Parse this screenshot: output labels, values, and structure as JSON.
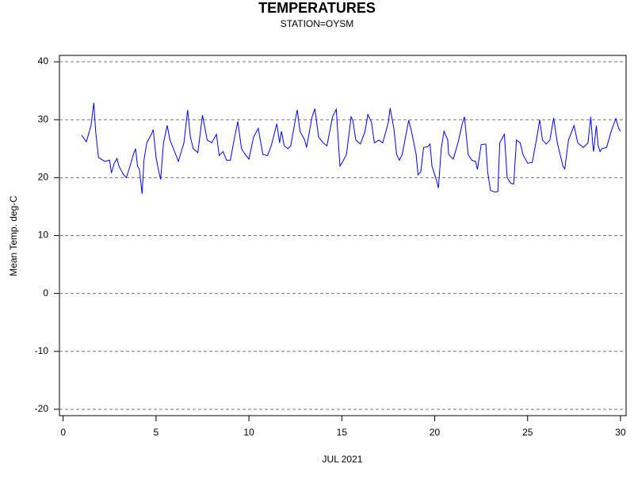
{
  "chart_data": {
    "type": "line",
    "title": "TEMPERATURES",
    "subtitle": "STATION=OYSM",
    "x_label": "JUL 2021",
    "y_label": "Mean Temp. deg-C",
    "xlim": [
      -0.2,
      30.3
    ],
    "xticks": [
      0,
      5,
      10,
      15,
      20,
      25,
      30
    ],
    "ylim": [
      -21.1,
      41.1
    ],
    "yticks": [
      -20,
      -10,
      0,
      10,
      20,
      30,
      40
    ],
    "grid": true,
    "series": [
      {
        "color": "#0000ff",
        "x": [
          1.0,
          1.25,
          1.5,
          1.65,
          1.75,
          1.9,
          2.0,
          2.25,
          2.5,
          2.6,
          2.75,
          2.9,
          3.0,
          3.25,
          3.4,
          3.6,
          3.8,
          3.9,
          4.0,
          4.1,
          4.25,
          4.35,
          4.5,
          4.75,
          4.85,
          5.0,
          5.15,
          5.25,
          5.4,
          5.6,
          5.75,
          6.0,
          6.2,
          6.5,
          6.7,
          6.85,
          7.0,
          7.25,
          7.5,
          7.75,
          8.0,
          8.25,
          8.4,
          8.6,
          8.8,
          9.0,
          9.2,
          9.4,
          9.6,
          9.8,
          10.0,
          10.25,
          10.5,
          10.75,
          11.0,
          11.2,
          11.5,
          11.65,
          11.75,
          11.9,
          12.1,
          12.25,
          12.5,
          12.6,
          12.75,
          13.0,
          13.1,
          13.4,
          13.55,
          13.75,
          14.0,
          14.2,
          14.5,
          14.7,
          14.9,
          15.0,
          15.25,
          15.5,
          15.6,
          15.75,
          16.0,
          16.25,
          16.4,
          16.6,
          16.75,
          17.0,
          17.2,
          17.5,
          17.6,
          17.8,
          17.95,
          18.1,
          18.25,
          18.6,
          18.75,
          19.0,
          19.1,
          19.25,
          19.4,
          19.6,
          19.75,
          19.85,
          20.0,
          20.1,
          20.2,
          20.35,
          20.5,
          20.7,
          20.75,
          21.0,
          21.25,
          21.5,
          21.6,
          21.8,
          22.0,
          22.2,
          22.3,
          22.5,
          22.75,
          22.85,
          23.0,
          23.25,
          23.4,
          23.5,
          23.75,
          23.9,
          24.1,
          24.25,
          24.4,
          24.6,
          24.75,
          25.0,
          25.25,
          25.5,
          25.65,
          25.8,
          26.0,
          26.2,
          26.4,
          26.6,
          26.75,
          26.9,
          27.0,
          27.2,
          27.5,
          27.7,
          28.0,
          28.25,
          28.4,
          28.5,
          28.55,
          28.7,
          28.8,
          28.9,
          29.0,
          29.25,
          29.5,
          29.75,
          29.9,
          30.0
        ],
        "values": [
          27.3,
          26.2,
          29,
          32.9,
          28,
          23.5,
          23.3,
          22.8,
          23,
          20.8,
          22.5,
          23.3,
          22,
          20.5,
          20,
          22,
          24.2,
          25,
          22,
          21.5,
          17.2,
          23,
          26,
          27.5,
          28.3,
          23.5,
          21,
          19.7,
          26,
          29,
          26.5,
          24.5,
          22.8,
          26,
          31.7,
          27,
          25,
          24.3,
          30.8,
          26.5,
          26,
          27.5,
          23.8,
          24.5,
          23,
          23,
          26.5,
          29.7,
          25,
          24,
          23.2,
          27,
          28.5,
          24,
          23.8,
          25.5,
          29.3,
          26,
          28,
          25.5,
          25,
          25.5,
          30,
          31.7,
          28,
          26.5,
          25.2,
          30.5,
          31.9,
          27,
          26,
          25.5,
          30.5,
          31.8,
          22,
          22.5,
          24,
          30.5,
          29.8,
          26.5,
          25.8,
          28,
          30.9,
          29.5,
          26,
          26.5,
          26,
          29.5,
          32,
          28.5,
          24,
          23,
          24,
          29.9,
          28,
          24,
          20.5,
          21,
          25.2,
          25.3,
          25.8,
          22,
          20.5,
          19.5,
          18.2,
          25,
          28,
          26.5,
          24,
          23.2,
          26,
          29.5,
          30.5,
          24,
          23,
          22.8,
          21.4,
          25.7,
          25.8,
          21,
          17.8,
          17.5,
          17.6,
          26,
          27.5,
          20,
          19,
          18.9,
          26.5,
          26,
          24,
          22.5,
          22.6,
          27,
          30,
          26.5,
          25.8,
          26.5,
          30.3,
          26,
          24,
          22,
          21.5,
          26.5,
          29,
          26,
          25.2,
          26,
          30.5,
          26,
          24.5,
          29,
          25.5,
          24.5,
          25,
          25.2,
          28,
          30.2,
          28.5,
          28
        ]
      }
    ]
  }
}
